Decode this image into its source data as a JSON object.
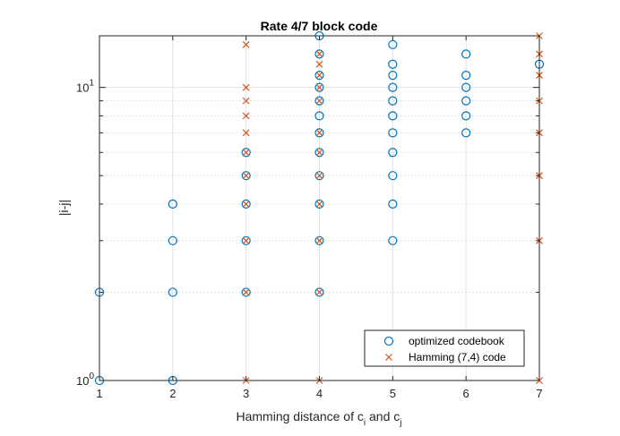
{
  "chart_data": {
    "type": "scatter",
    "title": "Rate 4/7 block code",
    "xlabel": "Hamming distance of c_i and c_j",
    "xlabel_parts": {
      "main": "Hamming distance of c",
      "sub1": "i",
      "conj": " and c",
      "sub2": "j"
    },
    "ylabel": "|i-j|",
    "xlim": [
      1,
      7
    ],
    "ylim": [
      1,
      15
    ],
    "yscale": "log",
    "x_ticks": [
      1,
      2,
      3,
      4,
      5,
      6,
      7
    ],
    "x_tick_labels": [
      "1",
      "2",
      "3",
      "4",
      "5",
      "6",
      "7"
    ],
    "y_ticks": [
      {
        "base": "10",
        "exp": "0",
        "value": 1
      },
      {
        "base": "10",
        "exp": "1",
        "value": 10
      }
    ],
    "grid": true,
    "legend_location": "bottom-right",
    "series": [
      {
        "name": "optimized codebook",
        "marker": "circle",
        "color": "#0072BD",
        "points": [
          [
            1,
            1
          ],
          [
            1,
            2
          ],
          [
            2,
            1
          ],
          [
            2,
            2
          ],
          [
            2,
            3
          ],
          [
            2,
            4
          ],
          [
            3,
            2
          ],
          [
            3,
            3
          ],
          [
            3,
            4
          ],
          [
            3,
            5
          ],
          [
            3,
            6
          ],
          [
            4,
            2
          ],
          [
            4,
            3
          ],
          [
            4,
            4
          ],
          [
            4,
            5
          ],
          [
            4,
            6
          ],
          [
            4,
            7
          ],
          [
            4,
            8
          ],
          [
            4,
            9
          ],
          [
            4,
            10
          ],
          [
            4,
            11
          ],
          [
            4,
            13
          ],
          [
            4,
            15
          ],
          [
            5,
            3
          ],
          [
            5,
            4
          ],
          [
            5,
            5
          ],
          [
            5,
            6
          ],
          [
            5,
            7
          ],
          [
            5,
            8
          ],
          [
            5,
            9
          ],
          [
            5,
            10
          ],
          [
            5,
            11
          ],
          [
            5,
            12
          ],
          [
            5,
            14
          ],
          [
            6,
            7
          ],
          [
            6,
            8
          ],
          [
            6,
            9
          ],
          [
            6,
            10
          ],
          [
            6,
            11
          ],
          [
            6,
            13
          ],
          [
            7,
            12
          ]
        ]
      },
      {
        "name": "Hamming (7,4) code",
        "marker": "x",
        "color": "#D95319",
        "points": [
          [
            3,
            1
          ],
          [
            3,
            2
          ],
          [
            3,
            3
          ],
          [
            3,
            4
          ],
          [
            3,
            5
          ],
          [
            3,
            6
          ],
          [
            3,
            7
          ],
          [
            3,
            8
          ],
          [
            3,
            9
          ],
          [
            3,
            10
          ],
          [
            3,
            14
          ],
          [
            4,
            1
          ],
          [
            4,
            2
          ],
          [
            4,
            3
          ],
          [
            4,
            4
          ],
          [
            4,
            5
          ],
          [
            4,
            6
          ],
          [
            4,
            7
          ],
          [
            4,
            9
          ],
          [
            4,
            10
          ],
          [
            4,
            11
          ],
          [
            4,
            12
          ],
          [
            4,
            13
          ],
          [
            7,
            1
          ],
          [
            7,
            3
          ],
          [
            7,
            5
          ],
          [
            7,
            7
          ],
          [
            7,
            9
          ],
          [
            7,
            11
          ],
          [
            7,
            13
          ],
          [
            7,
            15
          ]
        ]
      }
    ]
  }
}
